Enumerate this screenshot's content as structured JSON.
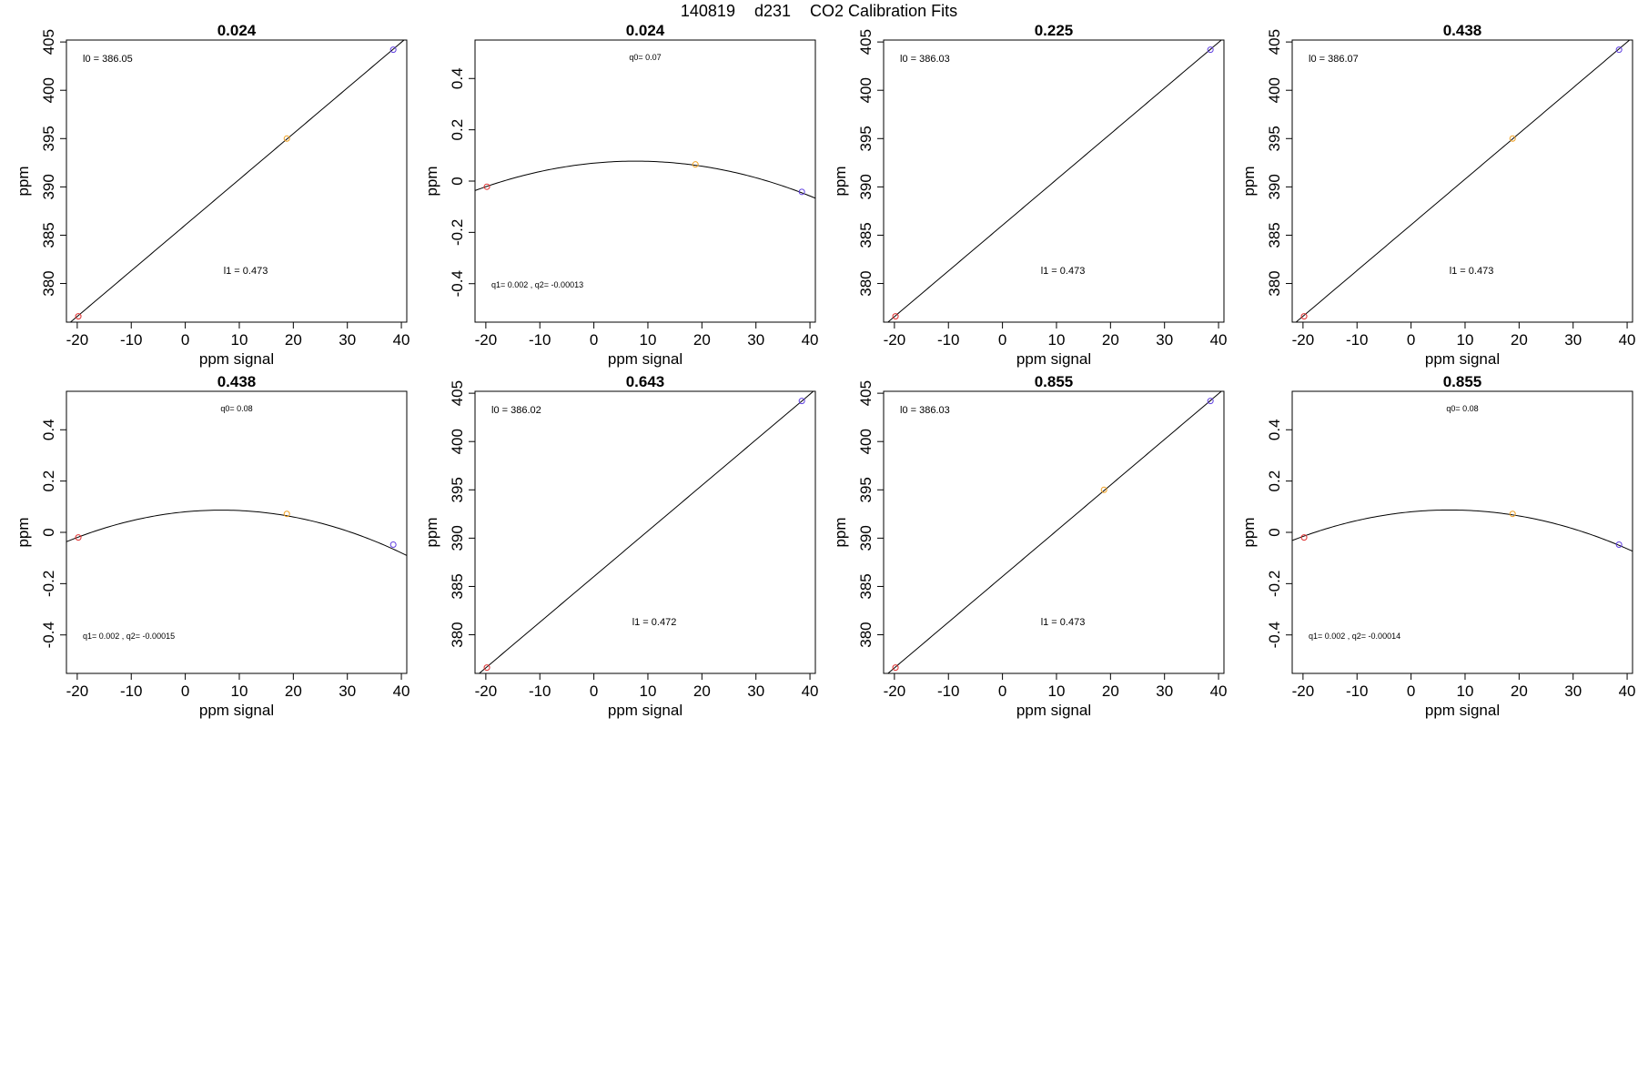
{
  "figure": {
    "title_parts": [
      "140819",
      "d231",
      "CO2 Calibration Fits"
    ]
  },
  "chart_data": [
    {
      "type": "scatter",
      "fit": "linear",
      "title": "0.024",
      "xlabel": "ppm signal",
      "ylabel": "ppm",
      "xlim": [
        -22,
        41
      ],
      "ylim": [
        376,
        405.2
      ],
      "xticks": [
        -20,
        -10,
        0,
        10,
        20,
        30,
        40
      ],
      "yticks": [
        380,
        385,
        390,
        395,
        400,
        405
      ],
      "points": [
        {
          "x": -19.8,
          "y": 376.6,
          "color": "#e03030"
        },
        {
          "x": 18.8,
          "y": 395.0,
          "color": "#f0a020"
        },
        {
          "x": 38.5,
          "y": 404.2,
          "color": "#6040e0"
        }
      ],
      "fit_coef": [
        386.05,
        0.473
      ],
      "annotations": [
        {
          "text": "l0 =  386.05",
          "pos": "top-left"
        },
        {
          "text": "l1 =  0.473",
          "pos": "center-bottom"
        }
      ]
    },
    {
      "type": "scatter",
      "fit": "quadratic",
      "title": "0.024",
      "xlabel": "ppm signal",
      "ylabel": "ppm",
      "xlim": [
        -22,
        41
      ],
      "ylim": [
        -0.55,
        0.55
      ],
      "xticks": [
        -20,
        -10,
        0,
        10,
        20,
        30,
        40
      ],
      "yticks": [
        -0.4,
        -0.2,
        0.0,
        0.2,
        0.4
      ],
      "points": [
        {
          "x": -19.8,
          "y": -0.022,
          "color": "#e03030"
        },
        {
          "x": 18.8,
          "y": 0.065,
          "color": "#f0a020"
        },
        {
          "x": 38.5,
          "y": -0.042,
          "color": "#6040e0"
        }
      ],
      "fit_coef": [
        0.07,
        0.002,
        -0.00013
      ],
      "annotations": [
        {
          "text": "q0= 0.07",
          "pos": "top-center"
        },
        {
          "text": "q1= 0.002 , q2= -0.00013",
          "pos": "bottom-left"
        }
      ]
    },
    {
      "type": "scatter",
      "fit": "linear",
      "title": "0.225",
      "xlabel": "ppm signal",
      "ylabel": "ppm",
      "xlim": [
        -22,
        41
      ],
      "ylim": [
        376,
        405.2
      ],
      "xticks": [
        -20,
        -10,
        0,
        10,
        20,
        30,
        40
      ],
      "yticks": [
        380,
        385,
        390,
        395,
        400,
        405
      ],
      "points": [
        {
          "x": -19.8,
          "y": 376.6,
          "color": "#e03030"
        },
        {
          "x": 38.5,
          "y": 404.2,
          "color": "#6040e0"
        }
      ],
      "fit_coef": [
        386.03,
        0.473
      ],
      "annotations": [
        {
          "text": "l0 =  386.03",
          "pos": "top-left"
        },
        {
          "text": "l1 =  0.473",
          "pos": "center-bottom"
        }
      ]
    },
    {
      "type": "scatter",
      "fit": "linear",
      "title": "0.438",
      "xlabel": "ppm signal",
      "ylabel": "ppm",
      "xlim": [
        -22,
        41
      ],
      "ylim": [
        376,
        405.2
      ],
      "xticks": [
        -20,
        -10,
        0,
        10,
        20,
        30,
        40
      ],
      "yticks": [
        380,
        385,
        390,
        395,
        400,
        405
      ],
      "points": [
        {
          "x": -19.8,
          "y": 376.6,
          "color": "#e03030"
        },
        {
          "x": 18.8,
          "y": 395.0,
          "color": "#f0a020"
        },
        {
          "x": 38.5,
          "y": 404.2,
          "color": "#6040e0"
        }
      ],
      "fit_coef": [
        386.07,
        0.473
      ],
      "annotations": [
        {
          "text": "l0 =  386.07",
          "pos": "top-left"
        },
        {
          "text": "l1 =  0.473",
          "pos": "center-bottom"
        }
      ]
    },
    {
      "type": "scatter",
      "fit": "quadratic",
      "title": "0.438",
      "xlabel": "ppm signal",
      "ylabel": "ppm",
      "xlim": [
        -22,
        41
      ],
      "ylim": [
        -0.55,
        0.55
      ],
      "xticks": [
        -20,
        -10,
        0,
        10,
        20,
        30,
        40
      ],
      "yticks": [
        -0.4,
        -0.2,
        0.0,
        0.2,
        0.4
      ],
      "points": [
        {
          "x": -19.8,
          "y": -0.02,
          "color": "#e03030"
        },
        {
          "x": 18.8,
          "y": 0.072,
          "color": "#f0a020"
        },
        {
          "x": 38.5,
          "y": -0.048,
          "color": "#6040e0"
        }
      ],
      "fit_coef": [
        0.08,
        0.002,
        -0.00015
      ],
      "annotations": [
        {
          "text": "q0= 0.08",
          "pos": "top-center"
        },
        {
          "text": "q1= 0.002 , q2= -0.00015",
          "pos": "bottom-left"
        }
      ]
    },
    {
      "type": "scatter",
      "fit": "linear",
      "title": "0.643",
      "xlabel": "ppm signal",
      "ylabel": "ppm",
      "xlim": [
        -22,
        41
      ],
      "ylim": [
        376,
        405.2
      ],
      "xticks": [
        -20,
        -10,
        0,
        10,
        20,
        30,
        40
      ],
      "yticks": [
        380,
        385,
        390,
        395,
        400,
        405
      ],
      "points": [
        {
          "x": -19.8,
          "y": 376.6,
          "color": "#e03030"
        },
        {
          "x": 38.5,
          "y": 404.2,
          "color": "#6040e0"
        }
      ],
      "fit_coef": [
        386.02,
        0.472
      ],
      "annotations": [
        {
          "text": "l0 =  386.02",
          "pos": "top-left"
        },
        {
          "text": "l1 =  0.472",
          "pos": "center-bottom"
        }
      ]
    },
    {
      "type": "scatter",
      "fit": "linear",
      "title": "0.855",
      "xlabel": "ppm signal",
      "ylabel": "ppm",
      "xlim": [
        -22,
        41
      ],
      "ylim": [
        376,
        405.2
      ],
      "xticks": [
        -20,
        -10,
        0,
        10,
        20,
        30,
        40
      ],
      "yticks": [
        380,
        385,
        390,
        395,
        400,
        405
      ],
      "points": [
        {
          "x": -19.8,
          "y": 376.6,
          "color": "#e03030"
        },
        {
          "x": 18.8,
          "y": 395.0,
          "color": "#f0a020"
        },
        {
          "x": 38.5,
          "y": 404.2,
          "color": "#6040e0"
        }
      ],
      "fit_coef": [
        386.03,
        0.473
      ],
      "annotations": [
        {
          "text": "l0 =  386.03",
          "pos": "top-left"
        },
        {
          "text": "l1 =  0.473",
          "pos": "center-bottom"
        }
      ]
    },
    {
      "type": "scatter",
      "fit": "quadratic",
      "title": "0.855",
      "xlabel": "ppm signal",
      "ylabel": "ppm",
      "xlim": [
        -22,
        41
      ],
      "ylim": [
        -0.55,
        0.55
      ],
      "xticks": [
        -20,
        -10,
        0,
        10,
        20,
        30,
        40
      ],
      "yticks": [
        -0.4,
        -0.2,
        0.0,
        0.2,
        0.4
      ],
      "points": [
        {
          "x": -19.8,
          "y": -0.02,
          "color": "#e03030"
        },
        {
          "x": 18.8,
          "y": 0.072,
          "color": "#f0a020"
        },
        {
          "x": 38.5,
          "y": -0.048,
          "color": "#6040e0"
        }
      ],
      "fit_coef": [
        0.08,
        0.002,
        -0.00014
      ],
      "annotations": [
        {
          "text": "q0= 0.08",
          "pos": "top-center"
        },
        {
          "text": "q1= 0.002 , q2= -0.00014",
          "pos": "bottom-left"
        }
      ]
    }
  ]
}
